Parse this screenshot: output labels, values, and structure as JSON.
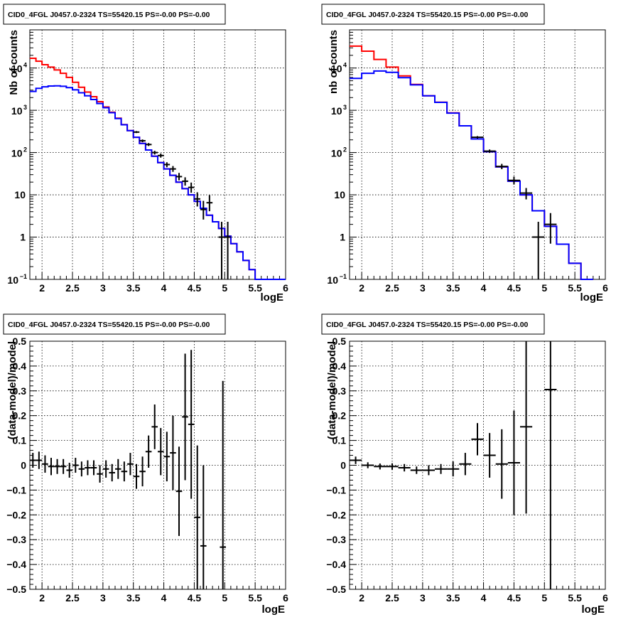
{
  "chart_data": [
    {
      "type": "line",
      "title": "CID0_4FGL J0457.0-2324 TS=55420.15 PS=-0.00 PS=-0.00",
      "xlabel": "logE",
      "ylabel": "Nb of counts",
      "xlim": [
        1.8,
        6.0
      ],
      "ylim": [
        0.1,
        80000
      ],
      "yscale": "log",
      "grid": true,
      "x_ticks": [
        "2",
        "2.5",
        "3",
        "3.5",
        "4",
        "4.5",
        "5",
        "5.5",
        "6"
      ],
      "y_ticks": [
        {
          "value": 0.1,
          "base": "10",
          "exp": "−1"
        },
        {
          "value": 1,
          "label": "1"
        },
        {
          "value": 10,
          "label": "10"
        },
        {
          "value": 100,
          "base": "10",
          "exp": "2"
        },
        {
          "value": 1000,
          "base": "10",
          "exp": "3"
        },
        {
          "value": 10000,
          "base": "10",
          "exp": "4"
        }
      ],
      "bin_edges": [
        1.8,
        1.9,
        2.0,
        2.1,
        2.2,
        2.3,
        2.4,
        2.5,
        2.6,
        2.7,
        2.8,
        2.9,
        3.0,
        3.1,
        3.2,
        3.3,
        3.4,
        3.5,
        3.6,
        3.7,
        3.8,
        3.9,
        4.0,
        4.1,
        4.2,
        4.3,
        4.4,
        4.5,
        4.6,
        4.7,
        4.8,
        4.9,
        5.0,
        5.1,
        5.2,
        5.3,
        5.4,
        5.5,
        5.6,
        5.7,
        5.8,
        5.9,
        6.0
      ],
      "series": [
        {
          "color": "#ff0000",
          "kind": "histogram",
          "values": [
            17000,
            14500,
            12000,
            10500,
            9000,
            7500,
            6000,
            4600,
            3500,
            2700,
            2100,
            1600,
            1200,
            900,
            650,
            460,
            330,
            230,
            165,
            115,
            82,
            58,
            41,
            29,
            20,
            14,
            10,
            7,
            4.8,
            3.3,
            2.3,
            1.6,
            1.05,
            0.7,
            0.45,
            0.28,
            0.17,
            0.1,
            0.1,
            0.1,
            0.1,
            0.1
          ]
        },
        {
          "color": "#0000ff",
          "kind": "histogram",
          "values": [
            2800,
            3300,
            3600,
            3750,
            3800,
            3700,
            3450,
            3050,
            2600,
            2200,
            1800,
            1450,
            1150,
            880,
            640,
            455,
            330,
            230,
            165,
            115,
            82,
            58,
            41,
            29,
            20,
            14,
            10,
            7,
            4.8,
            3.3,
            2.3,
            1.6,
            1.05,
            0.7,
            0.45,
            0.28,
            0.17,
            0.1,
            0.1,
            0.1,
            0.1,
            0.1
          ]
        },
        {
          "color": "#000000",
          "kind": "errorbars",
          "points": [
            {
              "x": 3.55,
              "y": 305,
              "lo": 290,
              "hi": 322
            },
            {
              "x": 3.65,
              "y": 190,
              "lo": 176,
              "hi": 204
            },
            {
              "x": 3.75,
              "y": 155,
              "lo": 143,
              "hi": 168
            },
            {
              "x": 3.85,
              "y": 100,
              "lo": 90,
              "hi": 110
            },
            {
              "x": 3.95,
              "y": 85,
              "lo": 76,
              "hi": 95
            },
            {
              "x": 4.05,
              "y": 52,
              "lo": 45,
              "hi": 59
            },
            {
              "x": 4.15,
              "y": 41,
              "lo": 35,
              "hi": 48
            },
            {
              "x": 4.25,
              "y": 27,
              "lo": 22,
              "hi": 33
            },
            {
              "x": 4.35,
              "y": 21,
              "lo": 16.5,
              "hi": 26
            },
            {
              "x": 4.45,
              "y": 15,
              "lo": 11.2,
              "hi": 19.5
            },
            {
              "x": 4.55,
              "y": 8,
              "lo": 5.3,
              "hi": 11.5
            },
            {
              "x": 4.65,
              "y": 4.5,
              "lo": 2.6,
              "hi": 7.2
            },
            {
              "x": 4.75,
              "y": 6.5,
              "lo": 4.1,
              "hi": 9.8
            },
            {
              "x": 4.95,
              "y": 1.0,
              "lo": 0.1,
              "hi": 2.3
            },
            {
              "x": 5.05,
              "y": 1.0,
              "lo": 0.1,
              "hi": 2.3
            }
          ]
        }
      ]
    },
    {
      "type": "line",
      "title": "CID0_4FGL J0457.0-2324 TS=55420.15 PS=-0.00 PS=-0.00",
      "xlabel": "logE",
      "ylabel": "nb of counts",
      "xlim": [
        1.8,
        6.0
      ],
      "ylim": [
        0.1,
        80000
      ],
      "yscale": "log",
      "grid": true,
      "x_ticks": [
        "2",
        "2.5",
        "3",
        "3.5",
        "4",
        "4.5",
        "5",
        "5.5",
        "6"
      ],
      "y_ticks": [
        {
          "value": 0.1,
          "base": "10",
          "exp": "−1"
        },
        {
          "value": 1,
          "label": "1"
        },
        {
          "value": 10,
          "label": "10"
        },
        {
          "value": 100,
          "base": "10",
          "exp": "2"
        },
        {
          "value": 1000,
          "base": "10",
          "exp": "3"
        },
        {
          "value": 10000,
          "base": "10",
          "exp": "4"
        }
      ],
      "bin_edges": [
        1.8,
        2.0,
        2.2,
        2.4,
        2.6,
        2.8,
        3.0,
        3.2,
        3.4,
        3.6,
        3.8,
        4.0,
        4.2,
        4.4,
        4.6,
        4.8,
        5.0,
        5.2,
        5.4,
        5.6,
        5.8,
        6.0
      ],
      "series": [
        {
          "color": "#ff0000",
          "kind": "histogram",
          "values": [
            33000,
            25000,
            16000,
            10500,
            6500,
            4100,
            2200,
            1550,
            870,
            430,
            210,
            105,
            46,
            21,
            10,
            4.2,
            1.8,
            0.68,
            0.24,
            0.1
          ]
        },
        {
          "color": "#0000ff",
          "kind": "histogram",
          "values": [
            5700,
            7500,
            8500,
            7900,
            5900,
            4000,
            2200,
            1540,
            860,
            430,
            210,
            105,
            46,
            21,
            10,
            4.2,
            1.8,
            0.68,
            0.24,
            0.1
          ]
        },
        {
          "color": "#000000",
          "kind": "errorbars",
          "points": [
            {
              "x": 3.9,
              "y": 230,
              "lo": 215,
              "hi": 245
            },
            {
              "x": 4.1,
              "y": 108,
              "lo": 98,
              "hi": 118
            },
            {
              "x": 4.3,
              "y": 47,
              "lo": 40.5,
              "hi": 54
            },
            {
              "x": 4.5,
              "y": 22,
              "lo": 17.5,
              "hi": 27
            },
            {
              "x": 4.7,
              "y": 11,
              "lo": 7.8,
              "hi": 14.5
            },
            {
              "x": 4.9,
              "y": 1.0,
              "lo": 0.1,
              "hi": 2.3
            },
            {
              "x": 5.1,
              "y": 2.0,
              "lo": 0.7,
              "hi": 3.7
            }
          ]
        }
      ]
    },
    {
      "type": "scatter",
      "title": "CID0_4FGL J0457.0-2324 TS=55420.15 PS=-0.00 PS=-0.00",
      "xlabel": "logE",
      "ylabel": "(data-model)/model",
      "xlim": [
        1.8,
        6.0
      ],
      "ylim": [
        -0.5,
        0.5
      ],
      "grid": true,
      "x_ticks": [
        "2",
        "2.5",
        "3",
        "3.5",
        "4",
        "4.5",
        "5",
        "5.5",
        "6"
      ],
      "y_ticks": [
        "−0.5",
        "−0.4",
        "−0.3",
        "−0.2",
        "−0.1",
        "0",
        "0.1",
        "0.2",
        "0.3",
        "0.4",
        "0.5"
      ],
      "points": [
        {
          "x": 1.85,
          "y": 0.02,
          "lo": -0.01,
          "hi": 0.05,
          "hw": 0.05
        },
        {
          "x": 1.95,
          "y": 0.02,
          "lo": -0.015,
          "hi": 0.055,
          "hw": 0.05
        },
        {
          "x": 2.05,
          "y": 0.005,
          "lo": -0.03,
          "hi": 0.04,
          "hw": 0.05
        },
        {
          "x": 2.15,
          "y": -0.005,
          "lo": -0.04,
          "hi": 0.03,
          "hw": 0.05
        },
        {
          "x": 2.25,
          "y": -0.005,
          "lo": -0.035,
          "hi": 0.025,
          "hw": 0.05
        },
        {
          "x": 2.35,
          "y": -0.005,
          "lo": -0.035,
          "hi": 0.025,
          "hw": 0.05
        },
        {
          "x": 2.45,
          "y": -0.02,
          "lo": -0.05,
          "hi": 0.01,
          "hw": 0.05
        },
        {
          "x": 2.55,
          "y": 0.0,
          "lo": -0.03,
          "hi": 0.03,
          "hw": 0.05
        },
        {
          "x": 2.65,
          "y": -0.015,
          "lo": -0.045,
          "hi": 0.015,
          "hw": 0.05
        },
        {
          "x": 2.75,
          "y": -0.01,
          "lo": -0.04,
          "hi": 0.02,
          "hw": 0.05
        },
        {
          "x": 2.85,
          "y": -0.01,
          "lo": -0.04,
          "hi": 0.02,
          "hw": 0.05
        },
        {
          "x": 2.95,
          "y": -0.035,
          "lo": -0.07,
          "hi": 0.0,
          "hw": 0.05
        },
        {
          "x": 3.05,
          "y": -0.015,
          "lo": -0.05,
          "hi": 0.02,
          "hw": 0.05
        },
        {
          "x": 3.15,
          "y": -0.03,
          "lo": -0.065,
          "hi": 0.005,
          "hw": 0.05
        },
        {
          "x": 3.25,
          "y": -0.015,
          "lo": -0.055,
          "hi": 0.025,
          "hw": 0.05
        },
        {
          "x": 3.35,
          "y": -0.025,
          "lo": -0.065,
          "hi": 0.015,
          "hw": 0.05
        },
        {
          "x": 3.45,
          "y": 0.005,
          "lo": -0.04,
          "hi": 0.05,
          "hw": 0.05
        },
        {
          "x": 3.55,
          "y": -0.045,
          "lo": -0.095,
          "hi": 0.005,
          "hw": 0.05
        },
        {
          "x": 3.65,
          "y": -0.025,
          "lo": -0.085,
          "hi": 0.035,
          "hw": 0.05
        },
        {
          "x": 3.75,
          "y": 0.055,
          "lo": -0.01,
          "hi": 0.12,
          "hw": 0.05
        },
        {
          "x": 3.85,
          "y": 0.155,
          "lo": 0.065,
          "hi": 0.245,
          "hw": 0.05
        },
        {
          "x": 3.95,
          "y": 0.055,
          "lo": -0.04,
          "hi": 0.15,
          "hw": 0.05
        },
        {
          "x": 4.05,
          "y": 0.035,
          "lo": -0.065,
          "hi": 0.135,
          "hw": 0.05
        },
        {
          "x": 4.15,
          "y": 0.05,
          "lo": -0.1,
          "hi": 0.2,
          "hw": 0.05
        },
        {
          "x": 4.25,
          "y": -0.105,
          "lo": -0.285,
          "hi": 0.075,
          "hw": 0.05
        },
        {
          "x": 4.35,
          "y": 0.195,
          "lo": -0.06,
          "hi": 0.45,
          "hw": 0.05
        },
        {
          "x": 4.45,
          "y": 0.165,
          "lo": -0.135,
          "hi": 0.465,
          "hw": 0.05
        },
        {
          "x": 4.55,
          "y": -0.21,
          "lo": -0.5,
          "hi": 0.08,
          "hw": 0.05
        },
        {
          "x": 4.65,
          "y": -0.325,
          "lo": -0.5,
          "hi": -0.0,
          "hw": 0.05
        },
        {
          "x": 4.97,
          "y": -0.33,
          "lo": -0.5,
          "hi": 0.34,
          "hw": 0.05
        }
      ]
    },
    {
      "type": "scatter",
      "title": "CID0_4FGL J0457.0-2324 TS=55420.15 PS=-0.00 PS=-0.00",
      "xlabel": "logE",
      "ylabel": "(data-model)/model",
      "xlim": [
        1.8,
        6.0
      ],
      "ylim": [
        -0.5,
        0.5
      ],
      "grid": true,
      "x_ticks": [
        "2",
        "2.5",
        "3",
        "3.5",
        "4",
        "4.5",
        "5",
        "5.5",
        "6"
      ],
      "y_ticks": [
        "−0.5",
        "−0.4",
        "−0.3",
        "−0.2",
        "−0.1",
        "0",
        "0.1",
        "0.2",
        "0.3",
        "0.4",
        "0.5"
      ],
      "points": [
        {
          "x": 1.9,
          "y": 0.02,
          "lo": 0.005,
          "hi": 0.035,
          "hw": 0.1
        },
        {
          "x": 2.1,
          "y": 0.0,
          "lo": -0.012,
          "hi": 0.012,
          "hw": 0.1
        },
        {
          "x": 2.3,
          "y": -0.005,
          "lo": -0.017,
          "hi": 0.007,
          "hw": 0.1
        },
        {
          "x": 2.5,
          "y": -0.005,
          "lo": -0.018,
          "hi": 0.008,
          "hw": 0.1
        },
        {
          "x": 2.7,
          "y": -0.01,
          "lo": -0.025,
          "hi": 0.005,
          "hw": 0.1
        },
        {
          "x": 2.9,
          "y": -0.02,
          "lo": -0.035,
          "hi": -0.005,
          "hw": 0.1
        },
        {
          "x": 3.1,
          "y": -0.02,
          "lo": -0.04,
          "hi": 0.0,
          "hw": 0.1
        },
        {
          "x": 3.3,
          "y": -0.015,
          "lo": -0.035,
          "hi": 0.005,
          "hw": 0.1
        },
        {
          "x": 3.5,
          "y": -0.015,
          "lo": -0.045,
          "hi": 0.015,
          "hw": 0.1
        },
        {
          "x": 3.7,
          "y": 0.005,
          "lo": -0.04,
          "hi": 0.05,
          "hw": 0.1
        },
        {
          "x": 3.9,
          "y": 0.105,
          "lo": 0.04,
          "hi": 0.17,
          "hw": 0.1
        },
        {
          "x": 4.1,
          "y": 0.04,
          "lo": -0.05,
          "hi": 0.13,
          "hw": 0.1
        },
        {
          "x": 4.3,
          "y": 0.005,
          "lo": -0.135,
          "hi": 0.145,
          "hw": 0.1
        },
        {
          "x": 4.5,
          "y": 0.01,
          "lo": -0.2,
          "hi": 0.22,
          "hw": 0.1
        },
        {
          "x": 4.7,
          "y": 0.155,
          "lo": -0.195,
          "hi": 0.5,
          "hw": 0.1
        },
        {
          "x": 5.1,
          "y": 0.305,
          "lo": -0.5,
          "hi": 0.5,
          "hw": 0.1
        }
      ]
    }
  ]
}
